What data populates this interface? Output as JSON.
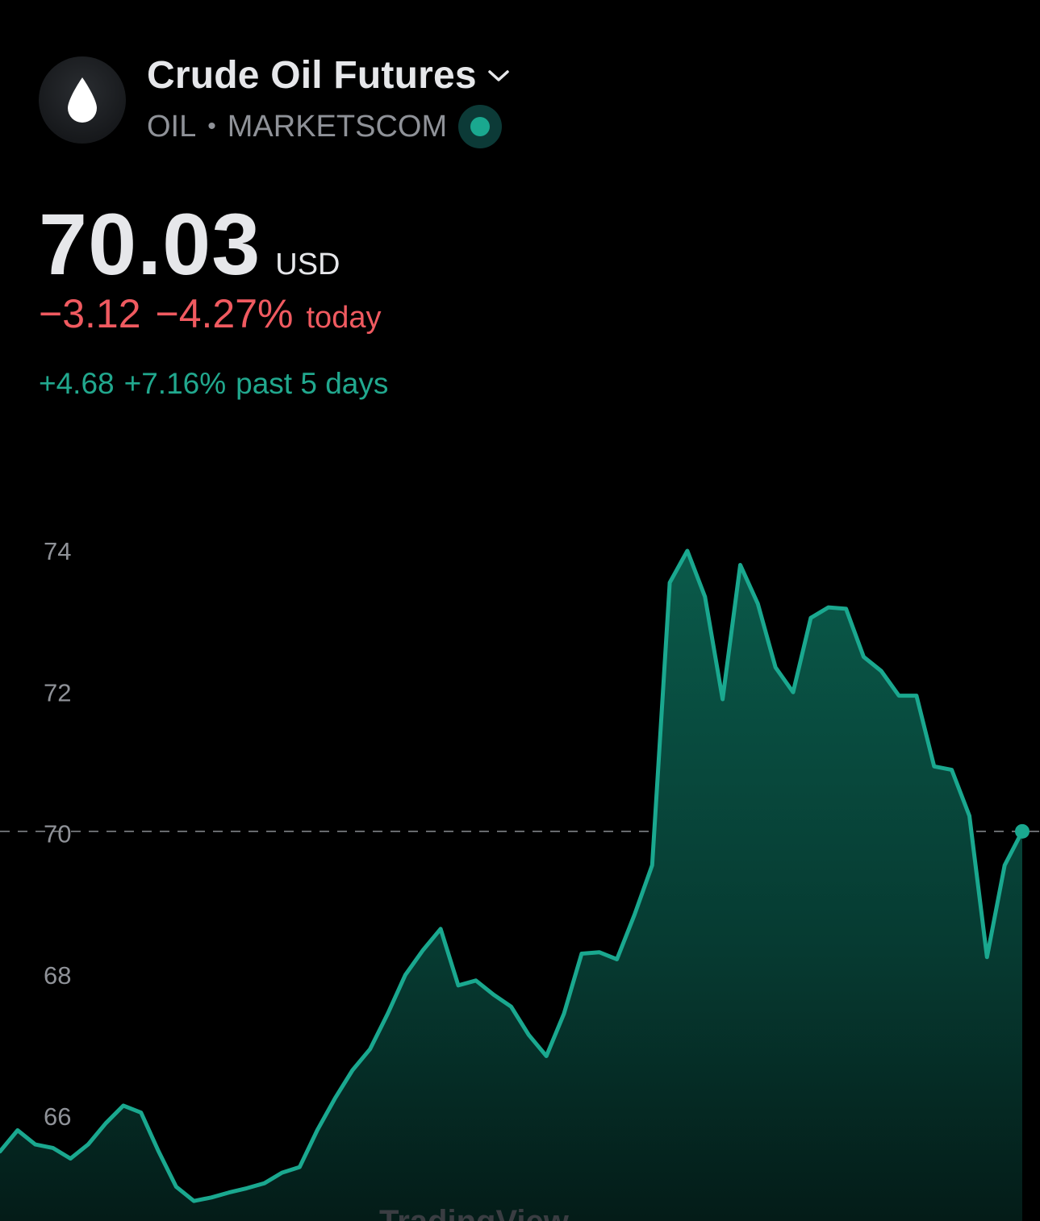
{
  "header": {
    "title": "Crude Oil Futures",
    "symbol": "OIL",
    "separator": "•",
    "exchange": "MARKETSCOM",
    "logo_icon": "oil-drop-icon",
    "status_color": "#1aa88f"
  },
  "quote": {
    "price": "70.03",
    "currency": "USD",
    "change_today_abs": "−3.12",
    "change_today_pct": "−4.27%",
    "change_today_label": "today",
    "change_5d_abs": "+4.68",
    "change_5d_pct": "+7.16%",
    "change_5d_label": "past 5 days"
  },
  "colors": {
    "background": "#000000",
    "line": "#1aa88f",
    "negative": "#f05a60",
    "positive": "#21a88e"
  },
  "chart_data": {
    "type": "area",
    "y_ticks": [
      "74",
      "72",
      "70",
      "68",
      "66"
    ],
    "ylim": [
      64.6,
      74.6
    ],
    "reference_line": 70.03,
    "grid": false,
    "watermark": "TradingView",
    "values": [
      65.5,
      65.8,
      65.6,
      65.55,
      65.4,
      65.6,
      65.9,
      66.15,
      66.05,
      65.5,
      65.0,
      64.8,
      64.85,
      64.92,
      64.98,
      65.05,
      65.2,
      65.28,
      65.8,
      66.25,
      66.65,
      66.95,
      67.45,
      68.0,
      68.35,
      68.65,
      67.85,
      67.92,
      67.72,
      67.55,
      67.15,
      66.85,
      67.45,
      68.3,
      68.32,
      68.22,
      68.85,
      69.55,
      73.55,
      74.0,
      73.35,
      71.9,
      73.8,
      73.25,
      72.35,
      72.0,
      73.05,
      73.2,
      73.18,
      72.5,
      72.3,
      71.95,
      71.95,
      70.95,
      70.9,
      70.25,
      68.25,
      69.55,
      70.03
    ]
  }
}
